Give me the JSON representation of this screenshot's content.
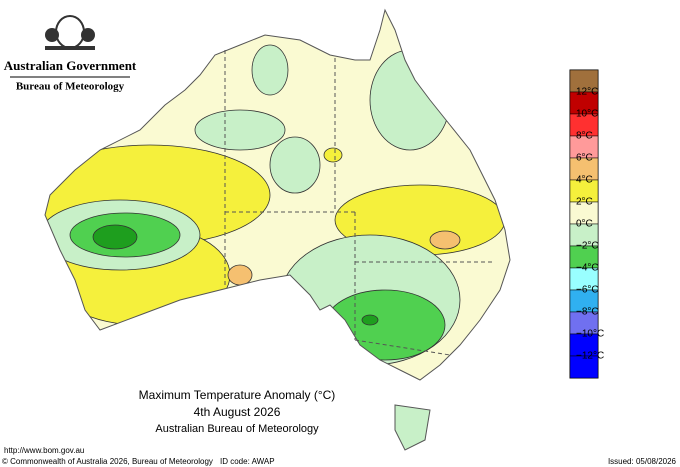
{
  "header": {
    "government": "Australian Government",
    "agency": "Bureau of Meteorology"
  },
  "legend": {
    "labels": [
      "12°C",
      "10°C",
      "8°C",
      "6°C",
      "4°C",
      "2°C",
      "0°C",
      "−2°C",
      "−4°C",
      "−6°C",
      "−8°C",
      "−10°C",
      "−12°C"
    ]
  },
  "caption": {
    "title": "Maximum Temperature Anomaly (°C)",
    "date": "4th August 2026",
    "source": "Australian Bureau of Meteorology"
  },
  "footer": {
    "url": "http://www.bom.gov.au",
    "copyright": "© Commonwealth of Australia 2026, Bureau of Meteorology",
    "id_code": "ID code: AWAP",
    "issued": "Issued: 05/08/2026"
  }
}
